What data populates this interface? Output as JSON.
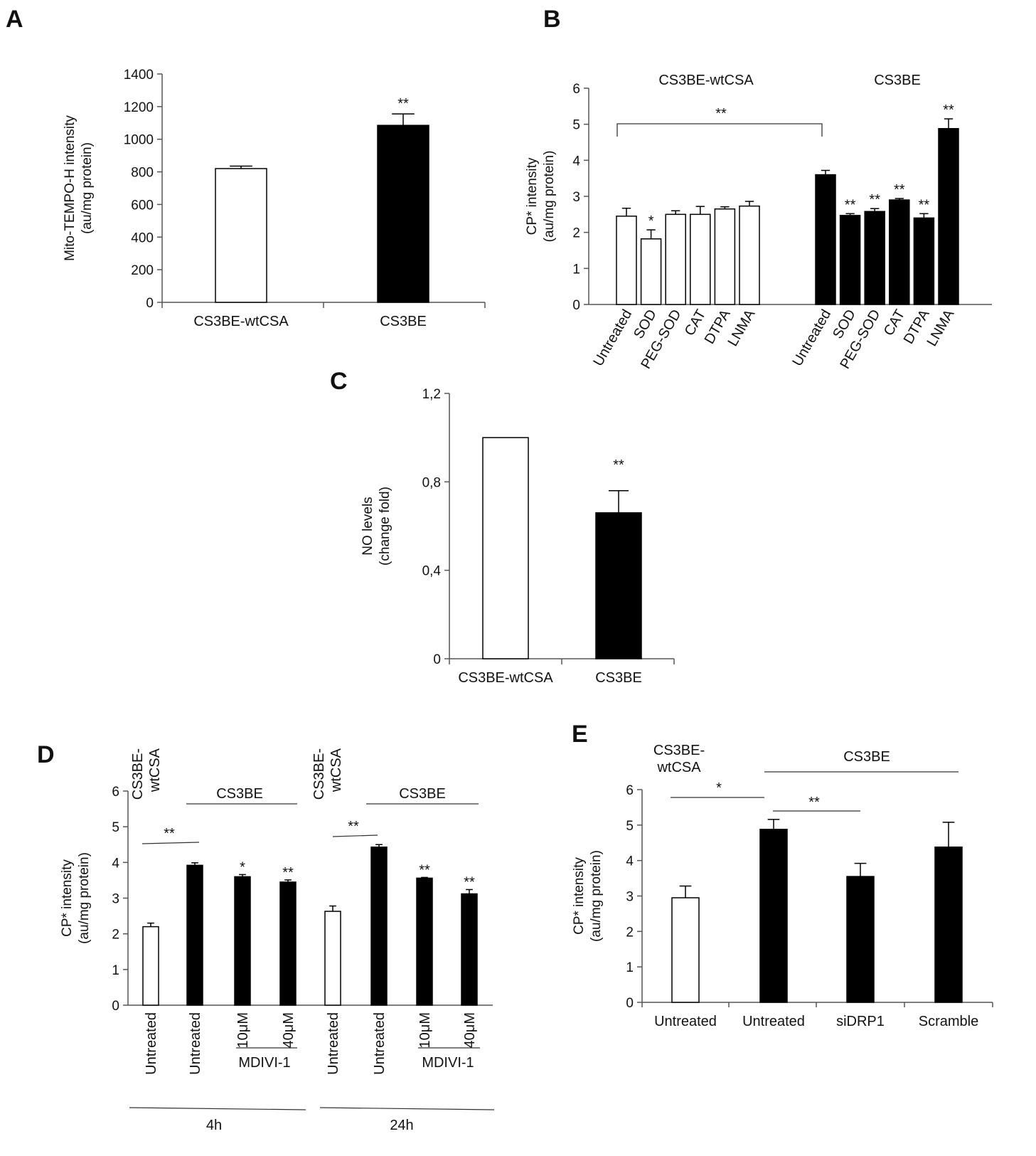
{
  "colors": {
    "filled": "#000000",
    "empty": "#ffffff",
    "stroke": "#000000"
  },
  "chart_data": [
    {
      "panel": "A",
      "type": "bar",
      "ylabel": [
        "Mito-TEMPO-H intensity",
        "(au/mg protein)"
      ],
      "ylim": [
        0,
        1400
      ],
      "yticks": [
        "0",
        "200",
        "400",
        "600",
        "800",
        "1000",
        "1200",
        "1400"
      ],
      "categories": [
        "CS3BE-wtCSA",
        "CS3BE"
      ],
      "values": [
        820,
        1085
      ],
      "errors": [
        15,
        70
      ],
      "fills": [
        "empty",
        "filled"
      ],
      "significance": [
        "",
        "**"
      ]
    },
    {
      "panel": "B",
      "type": "bar",
      "ylabel": [
        "CP* intensity",
        "(au/mg protein)"
      ],
      "ylim": [
        0,
        6
      ],
      "yticks": [
        "0",
        "1",
        "2",
        "3",
        "4",
        "5",
        "6"
      ],
      "groups": [
        {
          "label": "CS3BE-wtCSA",
          "categories": [
            "Untreated",
            "SOD",
            "PEG-SOD",
            "CAT",
            "DTPA",
            "LNMA"
          ],
          "values": [
            2.45,
            1.82,
            2.5,
            2.5,
            2.65,
            2.73
          ],
          "errors": [
            0.22,
            0.25,
            0.1,
            0.22,
            0.06,
            0.13
          ],
          "fill": "empty",
          "significance": [
            "",
            "*",
            "",
            "",
            "",
            ""
          ]
        },
        {
          "label": "CS3BE",
          "categories": [
            "Untreated",
            "SOD",
            "PEG-SOD",
            "CAT",
            "DTPA",
            "LNMA"
          ],
          "values": [
            3.6,
            2.47,
            2.58,
            2.9,
            2.4,
            4.88
          ],
          "errors": [
            0.12,
            0.05,
            0.08,
            0.04,
            0.12,
            0.27
          ],
          "fill": "filled",
          "significance": [
            "",
            "**",
            "**",
            "**",
            "**",
            "**"
          ]
        }
      ],
      "brackets": [
        {
          "label": "**"
        }
      ]
    },
    {
      "panel": "C",
      "type": "bar",
      "ylabel": [
        "NO levels",
        "(change fold)"
      ],
      "ylim": [
        0,
        1.2
      ],
      "yticks": [
        "0",
        "0,4",
        "0,8",
        "1,2"
      ],
      "categories": [
        "CS3BE-wtCSA",
        "CS3BE"
      ],
      "values": [
        1.0,
        0.66
      ],
      "errors": [
        0,
        0.1
      ],
      "fills": [
        "empty",
        "filled"
      ],
      "significance": [
        "",
        "**"
      ]
    },
    {
      "panel": "D",
      "type": "bar",
      "ylabel": [
        "CP* intensity",
        "(au/mg protein)"
      ],
      "ylim": [
        0,
        6
      ],
      "yticks": [
        "0",
        "1",
        "2",
        "3",
        "4",
        "5",
        "6"
      ],
      "time_groups": [
        {
          "label": "4h",
          "wt_label": [
            "CS3BE-",
            "wtCSA"
          ],
          "cs3be_label": "CS3BE",
          "categories": [
            "Untreated",
            "Untreated",
            "10μM",
            "40μM"
          ],
          "drug_label": "MDIVI-1",
          "values": [
            2.2,
            3.92,
            3.6,
            3.45
          ],
          "errors": [
            0.1,
            0.07,
            0.06,
            0.06
          ],
          "fills": [
            "empty",
            "filled",
            "filled",
            "filled"
          ],
          "significance": [
            "",
            "",
            "*",
            "**"
          ],
          "bracket": "**"
        },
        {
          "label": "24h",
          "wt_label": [
            "CS3BE-",
            "wtCSA"
          ],
          "cs3be_label": "CS3BE",
          "categories": [
            "Untreated",
            "Untreated",
            "10μM",
            "40μM"
          ],
          "drug_label": "MDIVI-1",
          "values": [
            2.63,
            4.43,
            3.56,
            3.12
          ],
          "errors": [
            0.15,
            0.07,
            0.02,
            0.12
          ],
          "fills": [
            "empty",
            "filled",
            "filled",
            "filled"
          ],
          "significance": [
            "",
            "",
            "**",
            "**"
          ],
          "bracket": "**"
        }
      ]
    },
    {
      "panel": "E",
      "type": "bar",
      "ylabel": [
        "CP* intensity",
        "(au/mg protein)"
      ],
      "ylim": [
        0,
        6
      ],
      "yticks": [
        "0",
        "1",
        "2",
        "3",
        "4",
        "5",
        "6"
      ],
      "categories": [
        "Untreated",
        "Untreated",
        "siDRP1",
        "Scramble"
      ],
      "values": [
        2.95,
        4.88,
        3.55,
        4.38
      ],
      "errors": [
        0.33,
        0.28,
        0.37,
        0.7
      ],
      "fills": [
        "empty",
        "filled",
        "filled",
        "filled"
      ],
      "group_labels": {
        "wt": [
          "CS3BE-",
          "wtCSA"
        ],
        "cs3be": "CS3BE"
      },
      "brackets": [
        {
          "label": "*"
        },
        {
          "label": "**"
        }
      ]
    }
  ]
}
